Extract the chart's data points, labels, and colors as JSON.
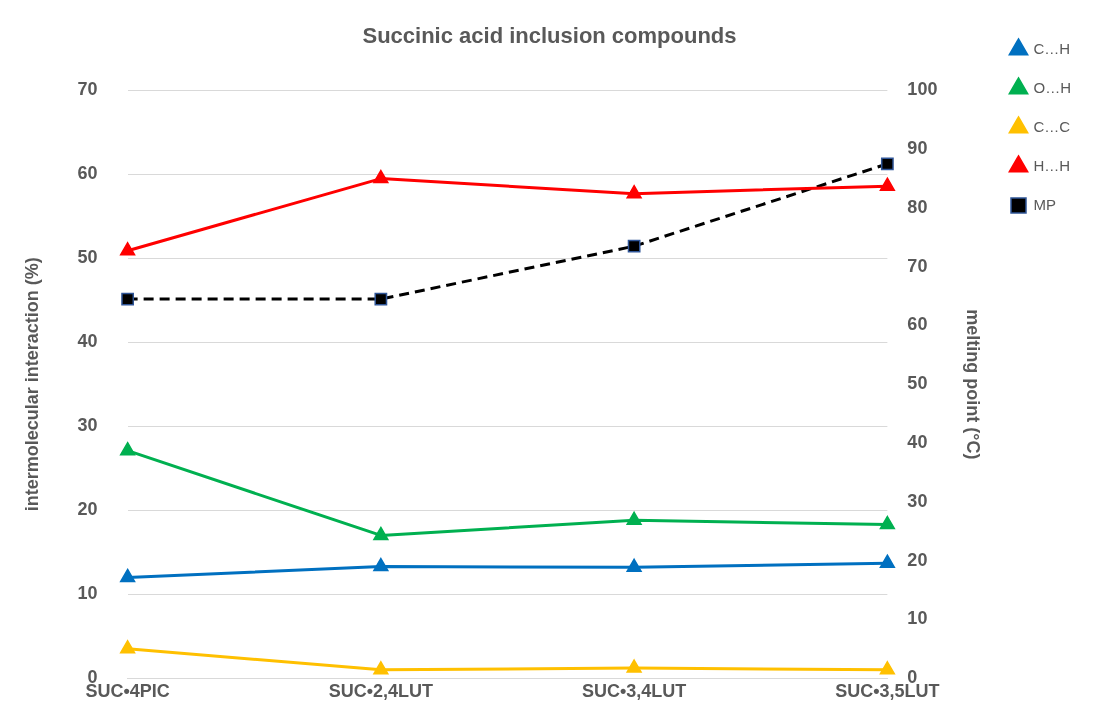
{
  "chart_data": {
    "type": "line",
    "title": "Succinic acid inclusion compounds",
    "ylabel": "intermolecular interaction (%)",
    "y2label": "melting point (°C)",
    "categories": [
      "SUC•4PIC",
      "SUC•2,4LUT",
      "SUC•3,4LUT",
      "SUC•3,5LUT"
    ],
    "series": [
      {
        "name": "C…H",
        "color": "#0070c0",
        "marker": "triangle",
        "line_style": "solid",
        "values": [
          12.0,
          13.3,
          13.2,
          13.7
        ]
      },
      {
        "name": "O…H",
        "color": "#00b050",
        "marker": "triangle",
        "line_style": "solid",
        "values": [
          27.1,
          17.0,
          18.8,
          18.3
        ]
      },
      {
        "name": "C…C",
        "color": "#ffc000",
        "marker": "triangle",
        "line_style": "solid",
        "values": [
          3.5,
          1.0,
          1.2,
          1.0
        ]
      },
      {
        "name": "H…H",
        "color": "#ff0000",
        "marker": "triangle",
        "line_style": "solid",
        "values": [
          50.9,
          59.5,
          57.7,
          58.6
        ]
      },
      {
        "name": "MP",
        "color": "#000000",
        "marker": "square",
        "line_style": "dashed",
        "axis": "y2",
        "values": [
          64.5,
          64.5,
          73.5,
          87.5
        ]
      }
    ],
    "ylim": [
      0,
      70
    ],
    "yticks": [
      0,
      10,
      20,
      30,
      40,
      50,
      60,
      70
    ],
    "y2lim": [
      0,
      100
    ],
    "y2ticks": [
      0,
      10,
      20,
      30,
      40,
      50,
      60,
      70,
      80,
      90,
      100
    ],
    "grid": "y",
    "legend": "top right"
  }
}
